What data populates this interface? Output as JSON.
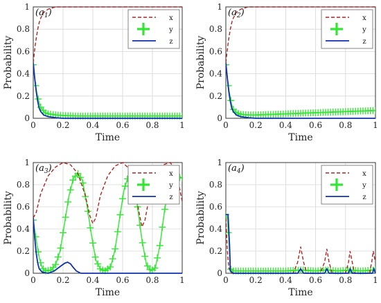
{
  "chart_data": [
    {
      "panel": "a1",
      "panel_label": "a",
      "panel_sub": "1",
      "type": "line",
      "xlabel": "Time",
      "ylabel": "Probability",
      "xlim": [
        0,
        1
      ],
      "ylim": [
        0,
        1
      ],
      "x_ticks": [
        "0",
        "0.2",
        "0.4",
        "0.6",
        "0.8",
        "1"
      ],
      "y_ticks": [
        "0",
        "0.2",
        "0.4",
        "0.6",
        "0.8",
        "1"
      ],
      "grid": true,
      "legend_position": "top-right",
      "series": [
        {
          "name": "x",
          "color": "#b22222",
          "style": "dashed",
          "points": [
            [
              0,
              0.5
            ],
            [
              0.01,
              0.62
            ],
            [
              0.02,
              0.72
            ],
            [
              0.03,
              0.8
            ],
            [
              0.04,
              0.86
            ],
            [
              0.05,
              0.9
            ],
            [
              0.07,
              0.95
            ],
            [
              0.1,
              0.98
            ],
            [
              0.15,
              1.0
            ],
            [
              0.3,
              1.0
            ],
            [
              0.5,
              1.0
            ],
            [
              0.7,
              1.0
            ],
            [
              0.9,
              1.0
            ],
            [
              1.0,
              1.0
            ]
          ]
        },
        {
          "name": "y",
          "color": "#33e633",
          "style": "plus-markers",
          "points": [
            [
              0,
              0.48
            ],
            [
              0.01,
              0.36
            ],
            [
              0.02,
              0.26
            ],
            [
              0.03,
              0.19
            ],
            [
              0.04,
              0.14
            ],
            [
              0.05,
              0.1
            ],
            [
              0.06,
              0.08
            ],
            [
              0.08,
              0.05
            ],
            [
              0.1,
              0.04
            ],
            [
              0.15,
              0.03
            ],
            [
              0.2,
              0.025
            ],
            [
              0.3,
              0.02
            ],
            [
              0.4,
              0.02
            ],
            [
              0.5,
              0.02
            ],
            [
              0.6,
              0.02
            ],
            [
              0.7,
              0.02
            ],
            [
              0.8,
              0.02
            ],
            [
              0.9,
              0.02
            ],
            [
              1.0,
              0.02
            ]
          ]
        },
        {
          "name": "z",
          "color": "#1030b0",
          "style": "solid",
          "points": [
            [
              0,
              0.5
            ],
            [
              0.01,
              0.36
            ],
            [
              0.02,
              0.24
            ],
            [
              0.03,
              0.15
            ],
            [
              0.04,
              0.09
            ],
            [
              0.05,
              0.06
            ],
            [
              0.07,
              0.03
            ],
            [
              0.1,
              0.015
            ],
            [
              0.15,
              0.005
            ],
            [
              0.2,
              0.0
            ],
            [
              0.5,
              0.0
            ],
            [
              1.0,
              0.0
            ]
          ]
        }
      ]
    },
    {
      "panel": "a2",
      "panel_label": "a",
      "panel_sub": "2",
      "type": "line",
      "xlabel": "Time",
      "ylabel": "Probability",
      "xlim": [
        0,
        1
      ],
      "ylim": [
        0,
        1
      ],
      "x_ticks": [
        "0",
        "0.2",
        "0.4",
        "0.6",
        "0.8",
        "1"
      ],
      "y_ticks": [
        "0",
        "0.2",
        "0.4",
        "0.6",
        "0.8",
        "1"
      ],
      "grid": true,
      "legend_position": "top-right",
      "series": [
        {
          "name": "x",
          "color": "#b22222",
          "style": "dashed",
          "points": [
            [
              0,
              0.5
            ],
            [
              0.01,
              0.62
            ],
            [
              0.02,
              0.72
            ],
            [
              0.03,
              0.8
            ],
            [
              0.04,
              0.86
            ],
            [
              0.05,
              0.9
            ],
            [
              0.07,
              0.95
            ],
            [
              0.1,
              0.98
            ],
            [
              0.15,
              1.0
            ],
            [
              0.3,
              1.0
            ],
            [
              0.5,
              1.0
            ],
            [
              0.7,
              1.0
            ],
            [
              0.9,
              1.0
            ],
            [
              1.0,
              1.0
            ]
          ]
        },
        {
          "name": "y",
          "color": "#33e633",
          "style": "plus-markers",
          "points": [
            [
              0,
              0.48
            ],
            [
              0.01,
              0.36
            ],
            [
              0.02,
              0.26
            ],
            [
              0.03,
              0.18
            ],
            [
              0.04,
              0.12
            ],
            [
              0.05,
              0.08
            ],
            [
              0.07,
              0.05
            ],
            [
              0.1,
              0.035
            ],
            [
              0.15,
              0.03
            ],
            [
              0.2,
              0.03
            ],
            [
              0.3,
              0.035
            ],
            [
              0.4,
              0.04
            ],
            [
              0.5,
              0.045
            ],
            [
              0.6,
              0.05
            ],
            [
              0.7,
              0.055
            ],
            [
              0.8,
              0.06
            ],
            [
              0.9,
              0.065
            ],
            [
              1.0,
              0.07
            ]
          ]
        },
        {
          "name": "z",
          "color": "#1030b0",
          "style": "solid",
          "points": [
            [
              0,
              0.5
            ],
            [
              0.01,
              0.36
            ],
            [
              0.02,
              0.24
            ],
            [
              0.03,
              0.15
            ],
            [
              0.04,
              0.09
            ],
            [
              0.05,
              0.06
            ],
            [
              0.07,
              0.03
            ],
            [
              0.1,
              0.015
            ],
            [
              0.15,
              0.005
            ],
            [
              0.2,
              0.0
            ],
            [
              0.5,
              0.0
            ],
            [
              1.0,
              0.0
            ]
          ]
        }
      ]
    },
    {
      "panel": "a3",
      "panel_label": "a",
      "panel_sub": "3",
      "type": "line",
      "xlabel": "Time",
      "ylabel": "Probability",
      "xlim": [
        0,
        1
      ],
      "ylim": [
        0,
        1
      ],
      "x_ticks": [
        "0",
        "0.2",
        "0.4",
        "0.6",
        "0.8",
        "1"
      ],
      "y_ticks": [
        "0",
        "0.2",
        "0.4",
        "0.6",
        "0.8",
        "1"
      ],
      "grid": true,
      "legend_position": "top-right",
      "series": [
        {
          "name": "x",
          "color": "#b22222",
          "style": "dashed",
          "points": [
            [
              0,
              0.5
            ],
            [
              0.02,
              0.55
            ],
            [
              0.05,
              0.72
            ],
            [
              0.1,
              0.88
            ],
            [
              0.15,
              0.96
            ],
            [
              0.2,
              1.0
            ],
            [
              0.25,
              0.98
            ],
            [
              0.3,
              0.9
            ],
            [
              0.35,
              0.7
            ],
            [
              0.38,
              0.52
            ],
            [
              0.4,
              0.45
            ],
            [
              0.42,
              0.5
            ],
            [
              0.45,
              0.7
            ],
            [
              0.5,
              0.88
            ],
            [
              0.55,
              0.97
            ],
            [
              0.6,
              1.0
            ],
            [
              0.64,
              0.95
            ],
            [
              0.68,
              0.78
            ],
            [
              0.71,
              0.55
            ],
            [
              0.73,
              0.42
            ],
            [
              0.75,
              0.48
            ],
            [
              0.78,
              0.7
            ],
            [
              0.82,
              0.9
            ],
            [
              0.87,
              0.98
            ],
            [
              0.92,
              1.0
            ],
            [
              0.96,
              0.92
            ],
            [
              1.0,
              0.65
            ]
          ]
        },
        {
          "name": "y",
          "color": "#33e633",
          "style": "plus-markers",
          "points": [
            [
              0,
              0.48
            ],
            [
              0.02,
              0.3
            ],
            [
              0.04,
              0.14
            ],
            [
              0.06,
              0.05
            ],
            [
              0.08,
              0.02
            ],
            [
              0.12,
              0.03
            ],
            [
              0.15,
              0.08
            ],
            [
              0.18,
              0.2
            ],
            [
              0.21,
              0.45
            ],
            [
              0.24,
              0.7
            ],
            [
              0.27,
              0.86
            ],
            [
              0.3,
              0.9
            ],
            [
              0.33,
              0.84
            ],
            [
              0.36,
              0.62
            ],
            [
              0.39,
              0.35
            ],
            [
              0.42,
              0.12
            ],
            [
              0.45,
              0.04
            ],
            [
              0.48,
              0.02
            ],
            [
              0.52,
              0.06
            ],
            [
              0.55,
              0.22
            ],
            [
              0.58,
              0.5
            ],
            [
              0.61,
              0.76
            ],
            [
              0.64,
              0.88
            ],
            [
              0.67,
              0.85
            ],
            [
              0.7,
              0.6
            ],
            [
              0.73,
              0.3
            ],
            [
              0.76,
              0.08
            ],
            [
              0.79,
              0.02
            ],
            [
              0.82,
              0.05
            ],
            [
              0.85,
              0.25
            ],
            [
              0.88,
              0.55
            ],
            [
              0.91,
              0.8
            ],
            [
              0.94,
              0.88
            ],
            [
              0.97,
              0.87
            ],
            [
              1.0,
              0.86
            ]
          ]
        },
        {
          "name": "z",
          "color": "#1030b0",
          "style": "solid",
          "points": [
            [
              0,
              0.5
            ],
            [
              0.01,
              0.32
            ],
            [
              0.02,
              0.18
            ],
            [
              0.03,
              0.09
            ],
            [
              0.04,
              0.04
            ],
            [
              0.06,
              0.01
            ],
            [
              0.1,
              0.0
            ],
            [
              0.14,
              0.02
            ],
            [
              0.18,
              0.06
            ],
            [
              0.21,
              0.09
            ],
            [
              0.23,
              0.1
            ],
            [
              0.25,
              0.085
            ],
            [
              0.27,
              0.05
            ],
            [
              0.29,
              0.02
            ],
            [
              0.32,
              0.0
            ],
            [
              0.5,
              0.0
            ],
            [
              1.0,
              0.0
            ]
          ]
        }
      ]
    },
    {
      "panel": "a4",
      "panel_label": "a",
      "panel_sub": "4",
      "type": "line",
      "xlabel": "Time",
      "ylabel": "Probability",
      "xlim": [
        0,
        1
      ],
      "ylim": [
        0,
        1
      ],
      "x_ticks": [
        "0",
        "0.2",
        "0.4",
        "0.6",
        "0.8",
        "1"
      ],
      "y_ticks": [
        "0",
        "0.2",
        "0.4",
        "0.6",
        "0.8",
        "1"
      ],
      "grid": true,
      "legend_position": "top-right",
      "series": [
        {
          "name": "x",
          "color": "#b22222",
          "style": "dashed",
          "points": [
            [
              0,
              0.5
            ],
            [
              0.01,
              0.2
            ],
            [
              0.02,
              0.05
            ],
            [
              0.04,
              0.0
            ],
            [
              0.45,
              0.0
            ],
            [
              0.48,
              0.1
            ],
            [
              0.5,
              0.24
            ],
            [
              0.52,
              0.1
            ],
            [
              0.54,
              0.0
            ],
            [
              0.63,
              0.0
            ],
            [
              0.66,
              0.1
            ],
            [
              0.675,
              0.22
            ],
            [
              0.69,
              0.1
            ],
            [
              0.71,
              0.0
            ],
            [
              0.8,
              0.0
            ],
            [
              0.82,
              0.1
            ],
            [
              0.83,
              0.2
            ],
            [
              0.845,
              0.1
            ],
            [
              0.86,
              0.0
            ],
            [
              0.96,
              0.0
            ],
            [
              0.975,
              0.1
            ],
            [
              0.985,
              0.2
            ],
            [
              1.0,
              0.1
            ]
          ]
        },
        {
          "name": "y",
          "color": "#33e633",
          "style": "plus-markers",
          "points": [
            [
              0,
              0.53
            ],
            [
              0.01,
              0.5
            ],
            [
              0.02,
              0.3
            ],
            [
              0.03,
              0.04
            ],
            [
              0.05,
              0.02
            ],
            [
              0.2,
              0.02
            ],
            [
              0.4,
              0.02
            ],
            [
              0.5,
              0.03
            ],
            [
              0.6,
              0.02
            ],
            [
              0.675,
              0.03
            ],
            [
              0.75,
              0.02
            ],
            [
              0.83,
              0.03
            ],
            [
              0.9,
              0.02
            ],
            [
              1.0,
              0.03
            ]
          ]
        },
        {
          "name": "z",
          "color": "#1030b0",
          "style": "solid",
          "points": [
            [
              0,
              0.53
            ],
            [
              0.015,
              0.53
            ],
            [
              0.025,
              0.25
            ],
            [
              0.03,
              0.02
            ],
            [
              0.05,
              0.0
            ],
            [
              0.48,
              0.0
            ],
            [
              0.5,
              0.04
            ],
            [
              0.52,
              0.0
            ],
            [
              0.66,
              0.0
            ],
            [
              0.675,
              0.04
            ],
            [
              0.69,
              0.0
            ],
            [
              0.82,
              0.0
            ],
            [
              0.83,
              0.04
            ],
            [
              0.845,
              0.0
            ],
            [
              0.98,
              0.0
            ],
            [
              0.99,
              0.04
            ],
            [
              1.0,
              0.0
            ]
          ]
        }
      ]
    }
  ]
}
